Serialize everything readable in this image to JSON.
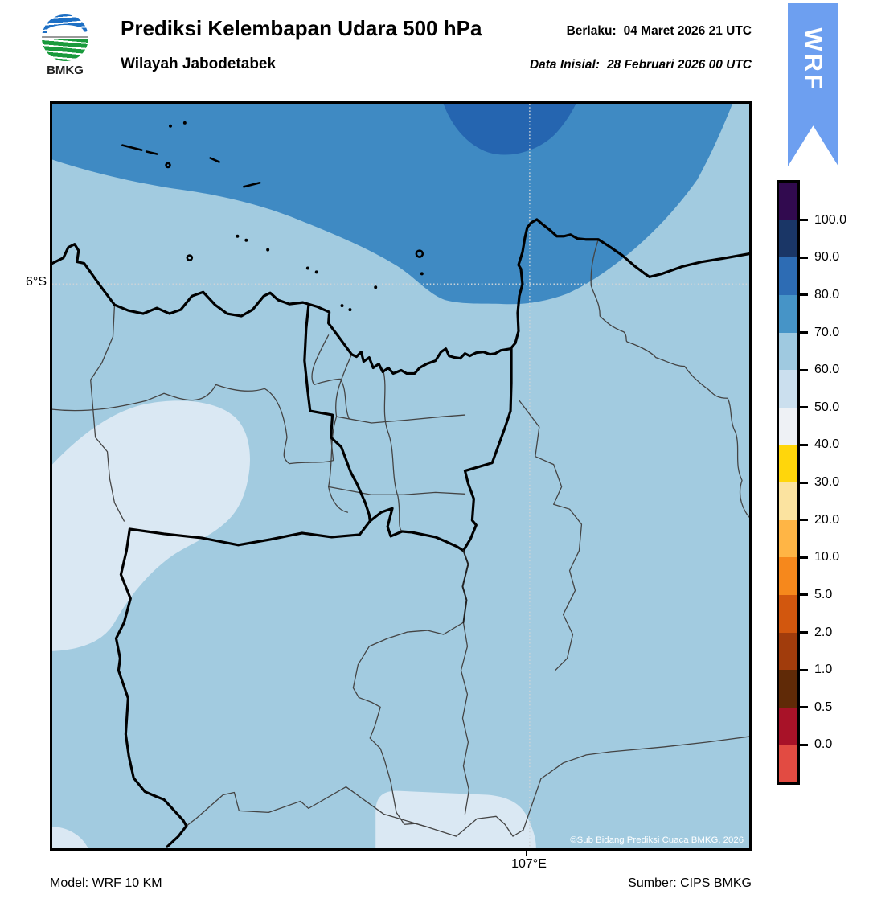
{
  "header": {
    "logo_text": "BMKG",
    "title": "Prediksi Kelembapan Udara 500 hPa",
    "subtitle": "Wilayah Jabodetabek",
    "valid_label": "Berlaku:",
    "valid_value": "04 Maret 2026 21 UTC",
    "init_label": "Data Inisial:",
    "init_value": "28 Februari 2026 00 UTC",
    "model_badge": "WRF"
  },
  "map": {
    "lat_label": "6°S",
    "lon_label": "107°E",
    "copyright": "©Sub Bidang Prediksi Cuaca BMKG, 2026"
  },
  "footer": {
    "model": "Model: WRF 10 KM",
    "source": "Sumber: CIPS BMKG"
  },
  "colorbar": {
    "tick_labels": [
      "100.0",
      "90.0",
      "80.0",
      "70.0",
      "60.0",
      "50.0",
      "40.0",
      "30.0",
      "20.0",
      "10.0",
      "5.0",
      "2.0",
      "1.0",
      "0.5",
      "0.0"
    ],
    "segment_colors": [
      "#310a4f",
      "#1a3666",
      "#2d6cb4",
      "#4694c7",
      "#9fc9e0",
      "#cbdfee",
      "#eef1f5",
      "#ffd60b",
      "#fbe3a0",
      "#ffb545",
      "#f6881c",
      "#d2570e",
      "#a13c0c",
      "#602a07",
      "#a81228",
      "#e24b42"
    ]
  },
  "colors": {
    "ribbon": "#6d9ff0",
    "rh_60_70": "#a2cbe0",
    "rh_70_80": "#3f8ac3",
    "rh_80_90": "#2565b0",
    "rh_50_60": "#dae8f3"
  }
}
